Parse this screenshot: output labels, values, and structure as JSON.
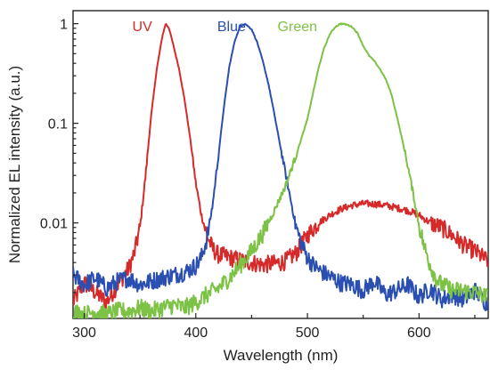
{
  "chart_data": {
    "type": "line",
    "title": "",
    "xlabel": "Wavelength (nm)",
    "ylabel": "Normalized EL intensity (a.u.)",
    "xlim": [
      290,
      662
    ],
    "ylim": [
      0.0011,
      1.35
    ],
    "yscale": "log",
    "grid": false,
    "legend": "series names printed above peaks",
    "x_ticks": [
      {
        "value": 300,
        "label": "300"
      },
      {
        "value": 400,
        "label": "400"
      },
      {
        "value": 500,
        "label": "500"
      },
      {
        "value": 600,
        "label": "600"
      }
    ],
    "y_ticks": [
      {
        "value": 1,
        "label": "1"
      },
      {
        "value": 0.1,
        "label": "0.1"
      },
      {
        "value": 0.01,
        "label": "0.01"
      }
    ],
    "series": [
      {
        "name": "UV",
        "color": "#d62a2a",
        "label_position": [
          352,
          0.95
        ],
        "x": [
          290,
          300,
          310,
          320,
          330,
          340,
          345,
          350,
          355,
          360,
          365,
          370,
          373,
          376,
          380,
          385,
          390,
          395,
          400,
          405,
          410,
          415,
          420,
          430,
          440,
          450,
          460,
          470,
          480,
          490,
          500,
          510,
          520,
          530,
          540,
          550,
          560,
          570,
          580,
          590,
          600,
          610,
          620,
          630,
          640,
          650,
          662
        ],
        "y": [
          0.0016,
          0.0025,
          0.002,
          0.0016,
          0.0024,
          0.0035,
          0.005,
          0.009,
          0.03,
          0.12,
          0.35,
          0.75,
          1.0,
          0.9,
          0.6,
          0.35,
          0.17,
          0.07,
          0.025,
          0.012,
          0.0075,
          0.0055,
          0.0048,
          0.0045,
          0.0042,
          0.004,
          0.0038,
          0.0039,
          0.0041,
          0.005,
          0.0075,
          0.01,
          0.012,
          0.0138,
          0.015,
          0.0156,
          0.0155,
          0.015,
          0.0142,
          0.0133,
          0.012,
          0.01,
          0.009,
          0.0075,
          0.006,
          0.0052,
          0.0041
        ]
      },
      {
        "name": "Blue",
        "color": "#2a4fb0",
        "label_position": [
          432,
          0.95
        ],
        "x": [
          290,
          300,
          310,
          320,
          330,
          340,
          350,
          360,
          370,
          380,
          390,
          400,
          405,
          410,
          415,
          420,
          425,
          430,
          435,
          440,
          444,
          450,
          455,
          460,
          465,
          470,
          475,
          480,
          485,
          490,
          495,
          500,
          505,
          510,
          515,
          520,
          530,
          540,
          550,
          560,
          570,
          580,
          590,
          600,
          610,
          620,
          630,
          640,
          650,
          662
        ],
        "y": [
          0.003,
          0.0024,
          0.0028,
          0.0022,
          0.0026,
          0.0028,
          0.0024,
          0.0026,
          0.0028,
          0.003,
          0.0032,
          0.0037,
          0.0045,
          0.007,
          0.015,
          0.045,
          0.14,
          0.37,
          0.68,
          0.95,
          1.0,
          0.88,
          0.65,
          0.42,
          0.25,
          0.13,
          0.065,
          0.033,
          0.017,
          0.009,
          0.006,
          0.0045,
          0.0038,
          0.0034,
          0.0031,
          0.0029,
          0.0025,
          0.0024,
          0.0021,
          0.0026,
          0.0019,
          0.0021,
          0.0024,
          0.0018,
          0.0022,
          0.0017,
          0.0019,
          0.0017,
          0.0021,
          0.0015
        ]
      },
      {
        "name": "Green",
        "color": "#7cc244",
        "label_position": [
          491,
          0.95
        ],
        "x": [
          290,
          300,
          310,
          320,
          330,
          340,
          350,
          360,
          370,
          380,
          390,
          400,
          410,
          420,
          430,
          440,
          450,
          460,
          470,
          480,
          490,
          500,
          505,
          510,
          515,
          520,
          525,
          530,
          535,
          540,
          545,
          550,
          555,
          560,
          565,
          570,
          575,
          580,
          585,
          590,
          595,
          600,
          605,
          610,
          615,
          620,
          630,
          640,
          650,
          662
        ],
        "y": [
          0.0013,
          0.0012,
          0.0013,
          0.0012,
          0.0013,
          0.0013,
          0.0014,
          0.0013,
          0.0014,
          0.0015,
          0.0014,
          0.0016,
          0.0019,
          0.0022,
          0.0028,
          0.0038,
          0.0052,
          0.0078,
          0.013,
          0.023,
          0.048,
          0.11,
          0.2,
          0.36,
          0.57,
          0.78,
          0.93,
          1.0,
          0.98,
          0.93,
          0.8,
          0.6,
          0.48,
          0.42,
          0.35,
          0.28,
          0.2,
          0.12,
          0.068,
          0.037,
          0.019,
          0.0095,
          0.0056,
          0.0038,
          0.0028,
          0.0024,
          0.0021,
          0.0021,
          0.002,
          0.0018
        ]
      }
    ]
  }
}
